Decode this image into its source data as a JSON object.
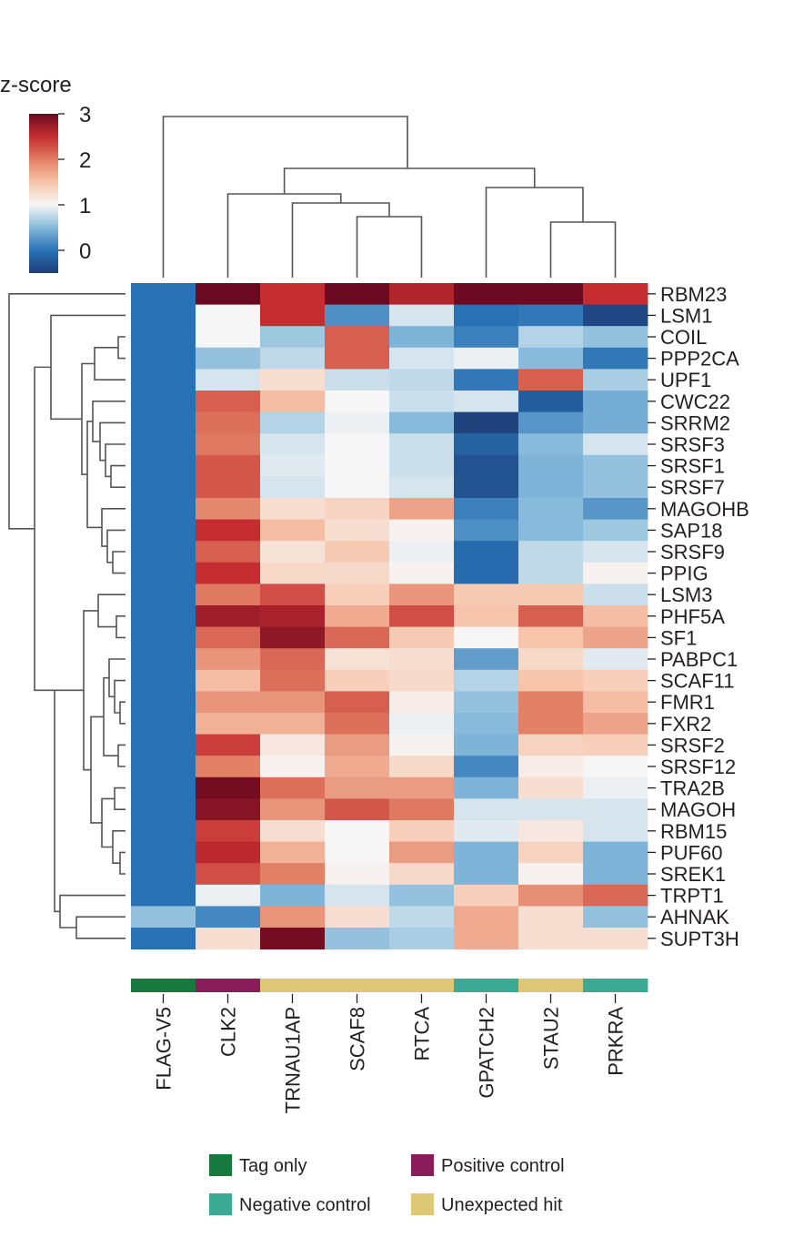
{
  "chart_data": {
    "type": "heatmap",
    "title": "",
    "colorbar": {
      "title": "z-score",
      "min": -0.5,
      "max": 3,
      "ticks": [
        0,
        1,
        2,
        3
      ],
      "tick_labels": [
        "0",
        "1",
        "2",
        "3"
      ]
    },
    "columns": [
      "FLAG-V5",
      "CLK2",
      "TRNAU1AP",
      "SCAF8",
      "RTCA",
      "GPATCH2",
      "STAU2",
      "PRKRA"
    ],
    "column_groups": [
      "tag",
      "positive",
      "unexpected",
      "unexpected",
      "unexpected",
      "negative",
      "unexpected",
      "negative"
    ],
    "rows": [
      "RBM23",
      "LSM1",
      "COIL",
      "PPP2CA",
      "UPF1",
      "CWC22",
      "SRRM2",
      "SRSF3",
      "SRSF1",
      "SRSF7",
      "MAGOHB",
      "SAP18",
      "SRSF9",
      "PPIG",
      "LSM3",
      "PHF5A",
      "SF1",
      "PABPC1",
      "SCAF11",
      "FMR1",
      "FXR2",
      "SRSF2",
      "SRSF12",
      "TRA2B",
      "MAGOH",
      "RBM15",
      "PUF60",
      "SREK1",
      "TRPT1",
      "AHNAK",
      "SUPT3H"
    ],
    "values": [
      [
        0.0,
        3.0,
        2.5,
        3.0,
        2.6,
        3.0,
        3.0,
        2.5
      ],
      [
        0.0,
        1.0,
        2.5,
        0.2,
        0.85,
        0.0,
        0.05,
        -0.4
      ],
      [
        0.0,
        1.0,
        0.6,
        2.2,
        0.45,
        0.1,
        0.7,
        0.55
      ],
      [
        0.0,
        0.55,
        0.75,
        2.2,
        0.85,
        0.95,
        0.5,
        0.05
      ],
      [
        0.0,
        0.85,
        1.25,
        0.8,
        0.75,
        0.05,
        2.2,
        0.65
      ],
      [
        0.0,
        2.2,
        1.55,
        1.0,
        0.8,
        0.85,
        -0.2,
        0.4
      ],
      [
        0.0,
        2.1,
        0.7,
        0.95,
        0.5,
        -0.45,
        0.25,
        0.4
      ],
      [
        0.0,
        2.05,
        0.85,
        1.0,
        0.8,
        -0.15,
        0.5,
        0.85
      ],
      [
        0.0,
        2.25,
        0.9,
        1.0,
        0.8,
        -0.3,
        0.45,
        0.55
      ],
      [
        0.0,
        2.25,
        0.85,
        1.0,
        0.85,
        -0.3,
        0.45,
        0.55
      ],
      [
        0.0,
        1.95,
        1.25,
        1.35,
        1.75,
        0.1,
        0.5,
        0.25
      ],
      [
        0.0,
        2.5,
        1.55,
        1.25,
        1.05,
        0.2,
        0.5,
        0.6
      ],
      [
        0.0,
        2.2,
        1.2,
        1.45,
        0.95,
        -0.05,
        0.75,
        0.85
      ],
      [
        0.0,
        2.5,
        1.3,
        1.3,
        1.05,
        -0.05,
        0.75,
        1.05
      ],
      [
        0.0,
        2.05,
        2.3,
        1.4,
        1.85,
        1.45,
        1.45,
        0.8
      ],
      [
        0.0,
        2.7,
        2.65,
        1.7,
        2.3,
        1.5,
        2.2,
        1.55
      ],
      [
        0.0,
        2.15,
        2.8,
        2.15,
        1.45,
        1.0,
        1.5,
        1.75
      ],
      [
        0.0,
        1.85,
        2.15,
        1.2,
        1.25,
        0.3,
        1.3,
        0.9
      ],
      [
        0.0,
        1.55,
        2.1,
        1.4,
        1.3,
        0.7,
        1.5,
        1.4
      ],
      [
        0.0,
        1.85,
        1.85,
        2.2,
        1.1,
        0.55,
        2.0,
        1.55
      ],
      [
        0.0,
        1.65,
        1.65,
        2.1,
        0.95,
        0.5,
        2.0,
        1.75
      ],
      [
        0.0,
        2.4,
        1.15,
        1.8,
        1.05,
        0.45,
        1.35,
        1.4
      ],
      [
        0.0,
        2.0,
        1.05,
        1.7,
        1.3,
        0.15,
        1.1,
        1.0
      ],
      [
        0.0,
        2.95,
        2.1,
        1.8,
        1.8,
        0.45,
        1.25,
        0.95
      ],
      [
        0.0,
        2.85,
        1.85,
        2.25,
        2.05,
        0.85,
        0.85,
        0.85
      ],
      [
        0.0,
        2.4,
        1.25,
        1.0,
        1.4,
        0.9,
        1.15,
        0.85
      ],
      [
        0.0,
        2.55,
        1.65,
        1.0,
        1.8,
        0.45,
        1.35,
        0.45
      ],
      [
        0.0,
        2.3,
        2.0,
        1.05,
        1.3,
        0.45,
        1.05,
        0.45
      ],
      [
        0.0,
        0.95,
        0.45,
        0.85,
        0.55,
        1.4,
        1.9,
        2.15
      ],
      [
        0.55,
        0.15,
        1.85,
        1.25,
        0.75,
        1.7,
        1.25,
        0.55
      ],
      [
        0.0,
        1.25,
        2.95,
        0.55,
        0.65,
        1.7,
        1.25,
        1.25
      ]
    ],
    "column_dendrogram_order": "FLAG-V5 | ((CLK2, (TRNAU1AP, (SCAF8, RTCA))), (GPATCH2, (STAU2, PRKRA)))",
    "legend": {
      "items": [
        {
          "label": "Tag only",
          "color": "#167a3e"
        },
        {
          "label": "Positive control",
          "color": "#8a1c5a"
        },
        {
          "label": "Negative control",
          "color": "#3aaa94"
        },
        {
          "label": "Unexpected hit",
          "color": "#dcc875"
        }
      ]
    },
    "group_colors": {
      "tag": "#167a3e",
      "positive": "#8a1c5a",
      "negative": "#3aaa94",
      "unexpected": "#dcc875"
    }
  }
}
